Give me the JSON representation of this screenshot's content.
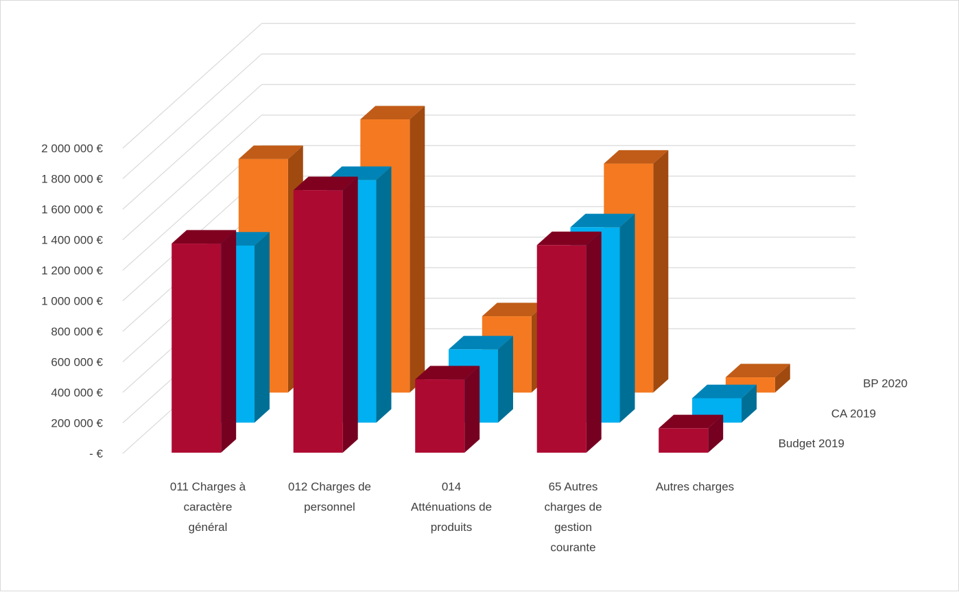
{
  "chart_data": {
    "type": "bar",
    "subtype": "3d-clustered-depth",
    "title": "",
    "xlabel": "",
    "ylabel": "",
    "ylim": [
      0,
      2000000
    ],
    "grid": true,
    "legend": "none",
    "categories": [
      "011 Charges à caractère général",
      "012 Charges de personnel",
      "014 Atténuations de produits",
      "65 Autres charges de gestion courante",
      "Autres charges"
    ],
    "category_lines": [
      [
        "011 Charges à",
        "caractère",
        "général"
      ],
      [
        "012 Charges de",
        "personnel"
      ],
      [
        "014",
        "Atténuations de",
        "produits"
      ],
      [
        "65 Autres",
        "charges de",
        "gestion",
        "courante"
      ],
      [
        "Autres charges"
      ]
    ],
    "yticks": [
      {
        "value": 0,
        "label": "-   €"
      },
      {
        "value": 200000,
        "label": "200 000 €"
      },
      {
        "value": 400000,
        "label": "400 000 €"
      },
      {
        "value": 600000,
        "label": "600 000 €"
      },
      {
        "value": 800000,
        "label": "800 000 €"
      },
      {
        "value": 1000000,
        "label": "1 000 000 €"
      },
      {
        "value": 1200000,
        "label": "1 200 000 €"
      },
      {
        "value": 1400000,
        "label": "1 400 000 €"
      },
      {
        "value": 1600000,
        "label": "1 600 000 €"
      },
      {
        "value": 1800000,
        "label": "1 800 000 €"
      },
      {
        "value": 2000000,
        "label": "2 000 000 €"
      }
    ],
    "series": [
      {
        "name": "Budget 2019",
        "values": [
          1370000,
          1720000,
          480000,
          1360000,
          160000
        ],
        "colors": {
          "front": "#ad0a31",
          "side": "#760020",
          "top": "#800020"
        }
      },
      {
        "name": "CA 2019",
        "values": [
          1160000,
          1590000,
          480000,
          1280000,
          160000
        ],
        "colors": {
          "front": "#00b0f0",
          "side": "#006f96",
          "top": "#0084b8"
        }
      },
      {
        "name": "BP 2020",
        "values": [
          1530000,
          1790000,
          500000,
          1500000,
          100000
        ],
        "colors": {
          "front": "#f47920",
          "side": "#a04a10",
          "top": "#c05c18"
        }
      }
    ],
    "gridline_color": "#d9d9d9",
    "text_color": "#404040"
  }
}
